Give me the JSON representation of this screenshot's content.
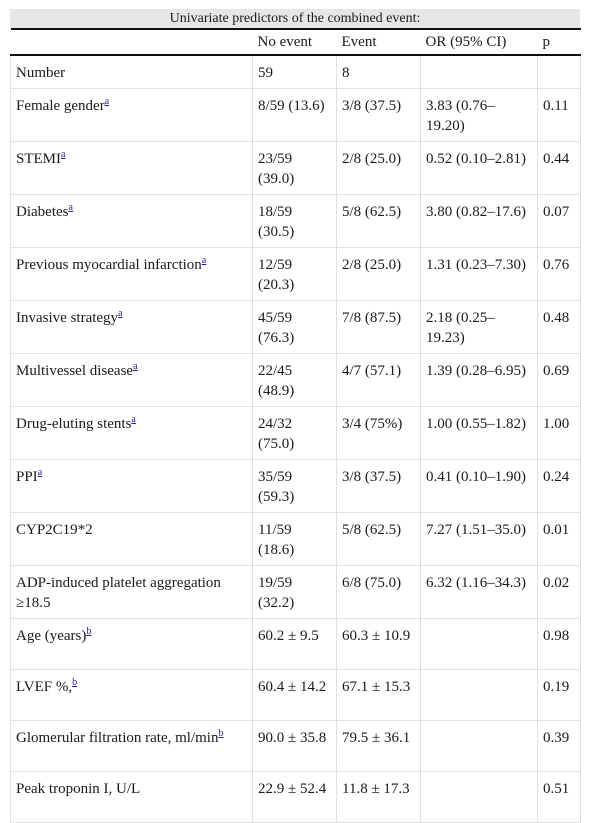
{
  "table": {
    "caption": "Univariate predictors of the combined event:",
    "headers": [
      "",
      "No event",
      "Event",
      "OR (95% CI)",
      "p"
    ],
    "rows": [
      {
        "label": "Number",
        "note": "",
        "no_event": "59",
        "event": "8",
        "or": "",
        "p": ""
      },
      {
        "label": "Female gender",
        "note": "a",
        "no_event": "8/59 (13.6)",
        "event": "3/8 (37.5)",
        "or": "3.83 (0.76–19.20)",
        "p": "0.11"
      },
      {
        "label": "STEMI",
        "note": "a",
        "no_event": "23/59 (39.0)",
        "event": "2/8 (25.0)",
        "or": "0.52 (0.10–2.81)",
        "p": "0.44"
      },
      {
        "label": "Diabetes",
        "note": "a",
        "no_event": "18/59 (30.5)",
        "event": "5/8 (62.5)",
        "or": "3.80 (0.82–17.6)",
        "p": "0.07"
      },
      {
        "label": "Previous myocardial infarction",
        "note": "a",
        "no_event": "12/59 (20.3)",
        "event": "2/8 (25.0)",
        "or": "1.31 (0.23–7.30)",
        "p": "0.76"
      },
      {
        "label": "Invasive strategy",
        "note": "a",
        "no_event": "45/59 (76.3)",
        "event": "7/8 (87.5)",
        "or": "2.18 (0.25–19.23)",
        "p": "0.48"
      },
      {
        "label": "Multivessel disease",
        "note": "a",
        "no_event": "22/45 (48.9)",
        "event": "4/7 (57.1)",
        "or": "1.39 (0.28–6.95)",
        "p": "0.69"
      },
      {
        "label": "Drug-eluting stents",
        "note": "a",
        "no_event": "24/32 (75.0)",
        "event": "3/4 (75%)",
        "or": "1.00 (0.55–1.82)",
        "p": "1.00"
      },
      {
        "label": "PPI",
        "note": "a",
        "no_event": "35/59 (59.3)",
        "event": "3/8 (37.5)",
        "or": "0.41 (0.10–1.90)",
        "p": "0.24"
      },
      {
        "label": "CYP2C19*2",
        "note": "",
        "no_event": "11/59 (18.6)",
        "event": "5/8 (62.5)",
        "or": "7.27 (1.51–35.0)",
        "p": "0.01"
      },
      {
        "label": "ADP-induced platelet aggregation ≥18.5",
        "note": "",
        "no_event": "19/59 (32.2)",
        "event": "6/8 (75.0)",
        "or": "6.32 (1.16–34.3)",
        "p": "0.02"
      },
      {
        "label": "Age (years)",
        "note": "b",
        "no_event": "60.2 ± 9.5",
        "event": "60.3 ± 10.9",
        "or": "",
        "p": "0.98"
      },
      {
        "label": "LVEF %,",
        "note": "b",
        "no_event": "60.4 ± 14.2",
        "event": "67.1 ± 15.3",
        "or": "",
        "p": "0.19"
      },
      {
        "label": "Glomerular filtration rate, ml/min",
        "note": "b",
        "no_event": "90.0 ± 35.8",
        "event": "79.5 ± 36.1",
        "or": "",
        "p": "0.39"
      },
      {
        "label": "Peak troponin I, U/L",
        "note": "",
        "no_event": "22.9 ± 52.4",
        "event": "11.8 ± 17.3",
        "or": "",
        "p": "0.51"
      }
    ]
  }
}
